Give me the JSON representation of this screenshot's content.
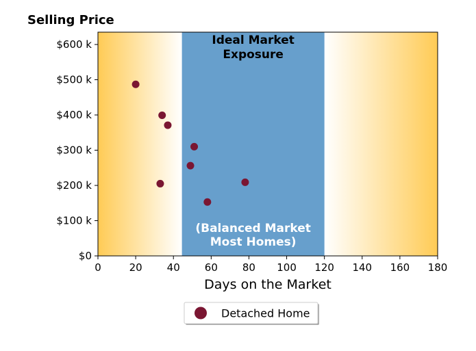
{
  "chart_data": {
    "type": "scatter",
    "ylabel": "Selling Price",
    "xlabel": "Days on the Market",
    "xlim": [
      0,
      180
    ],
    "ylim": [
      0,
      635000
    ],
    "x_ticks": [
      0,
      20,
      40,
      60,
      80,
      100,
      120,
      140,
      160,
      180
    ],
    "x_tick_labels": [
      "0",
      "20",
      "40",
      "60",
      "80",
      "100",
      "120",
      "140",
      "160",
      "180"
    ],
    "y_ticks": [
      0,
      100000,
      200000,
      300000,
      400000,
      500000,
      600000
    ],
    "y_tick_labels": [
      "$0",
      "$100 k",
      "$200 k",
      "$300 k",
      "$400 k",
      "$500 k",
      "$600 k"
    ],
    "grid": false,
    "legend_position": "bottom-center",
    "series": [
      {
        "name": "Detached Home",
        "color": "#7a1632",
        "points": [
          {
            "x": 20,
            "y": 487000
          },
          {
            "x": 34,
            "y": 399000
          },
          {
            "x": 37,
            "y": 371000
          },
          {
            "x": 51,
            "y": 310000
          },
          {
            "x": 49,
            "y": 256000
          },
          {
            "x": 33,
            "y": 205000
          },
          {
            "x": 78,
            "y": 209000
          },
          {
            "x": 58,
            "y": 153000
          }
        ]
      }
    ],
    "bands": [
      {
        "x_start": 44.5,
        "x_end": 120,
        "color": "#679fcc",
        "top_label": [
          "Ideal Market",
          "Exposure"
        ],
        "top_label_color": "#000000",
        "bottom_label": [
          "(Balanced Market",
          "Most Homes)"
        ],
        "bottom_label_color": "#ffffff"
      }
    ],
    "background_gradient": {
      "edge_color": "#ffcb55",
      "center_color": "#ffffff"
    }
  }
}
